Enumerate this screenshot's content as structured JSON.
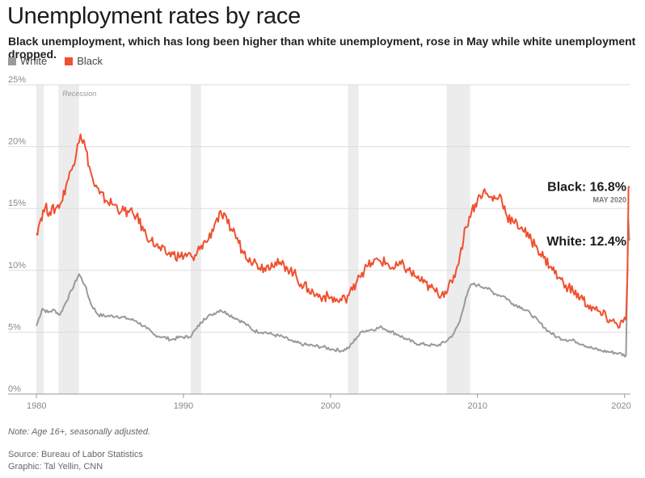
{
  "header": {
    "title": "Unemployment rates by race",
    "subtitle": "Black unemployment, which has long been higher than white unemployment, rose in May while white unemployment dropped."
  },
  "legend": {
    "white_label": "White",
    "black_label": "Black"
  },
  "colors": {
    "white": "#9a9a9a",
    "black": "#f0502f",
    "recession": "#ececec",
    "grid": "#dddddd",
    "axis": "#999999"
  },
  "footer": {
    "note": "Note: Age 16+, seasonally adjusted.",
    "source": "Source: Bureau of Labor Statistics",
    "graphic": "Graphic: Tal Yellin, CNN"
  },
  "chart_data": {
    "type": "line",
    "title": "Unemployment rates by race",
    "xlabel": "",
    "ylabel": "",
    "xlim": [
      1980,
      2020.4
    ],
    "ylim": [
      0,
      25
    ],
    "y_ticks": [
      0,
      5,
      10,
      15,
      20,
      25
    ],
    "y_tick_labels": [
      "0%",
      "5%",
      "10%",
      "15%",
      "20%",
      "25%"
    ],
    "x_ticks": [
      1980,
      1990,
      2000,
      2010,
      2020
    ],
    "x_tick_labels": [
      "1980",
      "1990",
      "2000",
      "2010",
      "2020"
    ],
    "recession_label": "Recession",
    "recessions": [
      [
        1980.0,
        1980.5
      ],
      [
        1981.5,
        1982.9
      ],
      [
        1990.5,
        1991.2
      ],
      [
        2001.2,
        2001.9
      ],
      [
        2007.9,
        2009.5
      ]
    ],
    "series": [
      {
        "name": "White",
        "points": [
          [
            1980.0,
            5.5
          ],
          [
            1980.4,
            6.9
          ],
          [
            1980.8,
            6.6
          ],
          [
            1981.2,
            6.8
          ],
          [
            1981.6,
            6.4
          ],
          [
            1982.0,
            7.4
          ],
          [
            1982.4,
            8.4
          ],
          [
            1982.9,
            9.7
          ],
          [
            1983.3,
            8.8
          ],
          [
            1983.7,
            7.3
          ],
          [
            1984.2,
            6.4
          ],
          [
            1984.8,
            6.3
          ],
          [
            1985.5,
            6.3
          ],
          [
            1986.2,
            6.1
          ],
          [
            1986.8,
            5.9
          ],
          [
            1987.5,
            5.3
          ],
          [
            1988.0,
            4.8
          ],
          [
            1988.6,
            4.6
          ],
          [
            1989.2,
            4.4
          ],
          [
            1989.8,
            4.6
          ],
          [
            1990.4,
            4.6
          ],
          [
            1990.9,
            5.3
          ],
          [
            1991.4,
            6.1
          ],
          [
            1991.9,
            6.4
          ],
          [
            1992.5,
            6.8
          ],
          [
            1993.0,
            6.5
          ],
          [
            1993.6,
            6.1
          ],
          [
            1994.2,
            5.7
          ],
          [
            1994.8,
            5.1
          ],
          [
            1995.5,
            5.0
          ],
          [
            1996.1,
            4.8
          ],
          [
            1996.8,
            4.6
          ],
          [
            1997.5,
            4.2
          ],
          [
            1998.2,
            4.0
          ],
          [
            1998.8,
            3.9
          ],
          [
            1999.5,
            3.8
          ],
          [
            2000.2,
            3.6
          ],
          [
            2000.8,
            3.5
          ],
          [
            2001.3,
            3.8
          ],
          [
            2001.8,
            4.6
          ],
          [
            2002.2,
            5.1
          ],
          [
            2002.8,
            5.2
          ],
          [
            2003.5,
            5.4
          ],
          [
            2004.0,
            5.1
          ],
          [
            2004.6,
            4.8
          ],
          [
            2005.2,
            4.4
          ],
          [
            2005.8,
            4.1
          ],
          [
            2006.5,
            4.0
          ],
          [
            2007.2,
            3.9
          ],
          [
            2007.8,
            4.2
          ],
          [
            2008.4,
            4.9
          ],
          [
            2008.8,
            5.9
          ],
          [
            2009.2,
            7.8
          ],
          [
            2009.6,
            8.9
          ],
          [
            2010.0,
            8.8
          ],
          [
            2010.6,
            8.6
          ],
          [
            2011.2,
            8.1
          ],
          [
            2011.8,
            7.9
          ],
          [
            2012.4,
            7.3
          ],
          [
            2013.0,
            7.0
          ],
          [
            2013.6,
            6.5
          ],
          [
            2014.2,
            5.8
          ],
          [
            2014.8,
            5.1
          ],
          [
            2015.4,
            4.6
          ],
          [
            2016.0,
            4.4
          ],
          [
            2016.6,
            4.3
          ],
          [
            2017.2,
            4.0
          ],
          [
            2017.8,
            3.7
          ],
          [
            2018.4,
            3.5
          ],
          [
            2019.0,
            3.4
          ],
          [
            2019.6,
            3.3
          ],
          [
            2020.1,
            3.1
          ],
          [
            2020.25,
            14.2
          ],
          [
            2020.33,
            12.4
          ]
        ]
      },
      {
        "name": "Black",
        "points": [
          [
            1980.0,
            13.0
          ],
          [
            1980.3,
            14.2
          ],
          [
            1980.6,
            15.1
          ],
          [
            1980.9,
            14.7
          ],
          [
            1981.3,
            15.0
          ],
          [
            1981.7,
            15.5
          ],
          [
            1982.1,
            17.2
          ],
          [
            1982.5,
            18.5
          ],
          [
            1982.8,
            20.2
          ],
          [
            1983.0,
            21.0
          ],
          [
            1983.3,
            20.1
          ],
          [
            1983.6,
            18.4
          ],
          [
            1983.9,
            17.0
          ],
          [
            1984.3,
            16.2
          ],
          [
            1984.8,
            15.6
          ],
          [
            1985.3,
            15.3
          ],
          [
            1985.8,
            14.8
          ],
          [
            1986.3,
            14.7
          ],
          [
            1986.8,
            14.4
          ],
          [
            1987.3,
            13.2
          ],
          [
            1987.8,
            12.4
          ],
          [
            1988.3,
            11.8
          ],
          [
            1988.8,
            11.4
          ],
          [
            1989.3,
            11.3
          ],
          [
            1989.8,
            11.1
          ],
          [
            1990.3,
            11.3
          ],
          [
            1990.7,
            10.8
          ],
          [
            1991.2,
            12.0
          ],
          [
            1991.7,
            12.5
          ],
          [
            1992.2,
            14.0
          ],
          [
            1992.6,
            14.5
          ],
          [
            1993.0,
            13.8
          ],
          [
            1993.5,
            13.0
          ],
          [
            1994.0,
            11.6
          ],
          [
            1994.5,
            11.0
          ],
          [
            1995.0,
            10.5
          ],
          [
            1995.5,
            10.2
          ],
          [
            1996.0,
            10.6
          ],
          [
            1996.5,
            10.5
          ],
          [
            1997.0,
            10.3
          ],
          [
            1997.5,
            9.8
          ],
          [
            1998.0,
            8.9
          ],
          [
            1998.5,
            8.5
          ],
          [
            1999.0,
            8.0
          ],
          [
            1999.5,
            7.9
          ],
          [
            2000.0,
            7.8
          ],
          [
            2000.5,
            7.5
          ],
          [
            2001.0,
            7.7
          ],
          [
            2001.5,
            8.4
          ],
          [
            2001.9,
            9.6
          ],
          [
            2002.3,
            10.0
          ],
          [
            2002.8,
            10.6
          ],
          [
            2003.3,
            10.8
          ],
          [
            2003.8,
            10.6
          ],
          [
            2004.3,
            10.1
          ],
          [
            2004.8,
            10.5
          ],
          [
            2005.3,
            10.0
          ],
          [
            2005.8,
            9.5
          ],
          [
            2006.3,
            9.0
          ],
          [
            2006.8,
            8.6
          ],
          [
            2007.3,
            8.1
          ],
          [
            2007.8,
            8.3
          ],
          [
            2008.3,
            9.0
          ],
          [
            2008.8,
            11.2
          ],
          [
            2009.2,
            13.5
          ],
          [
            2009.6,
            14.8
          ],
          [
            2010.0,
            15.7
          ],
          [
            2010.4,
            16.4
          ],
          [
            2010.8,
            15.9
          ],
          [
            2011.2,
            15.8
          ],
          [
            2011.6,
            16.0
          ],
          [
            2012.0,
            14.4
          ],
          [
            2012.5,
            13.8
          ],
          [
            2013.0,
            13.5
          ],
          [
            2013.5,
            12.6
          ],
          [
            2014.0,
            12.0
          ],
          [
            2014.5,
            11.0
          ],
          [
            2015.0,
            10.3
          ],
          [
            2015.5,
            9.4
          ],
          [
            2016.0,
            8.8
          ],
          [
            2016.5,
            8.3
          ],
          [
            2017.0,
            7.8
          ],
          [
            2017.5,
            7.2
          ],
          [
            2018.0,
            6.8
          ],
          [
            2018.5,
            6.4
          ],
          [
            2019.0,
            6.0
          ],
          [
            2019.5,
            5.6
          ],
          [
            2019.9,
            5.8
          ],
          [
            2020.1,
            6.0
          ],
          [
            2020.2,
            10.0
          ],
          [
            2020.27,
            16.7
          ],
          [
            2020.33,
            16.8
          ]
        ]
      }
    ],
    "callouts": [
      {
        "series": "Black",
        "label": "Black: 16.8%",
        "sublabel": "MAY 2020",
        "value": 16.8
      },
      {
        "series": "White",
        "label": "White: 12.4%",
        "sublabel": "",
        "value": 12.4
      }
    ]
  }
}
